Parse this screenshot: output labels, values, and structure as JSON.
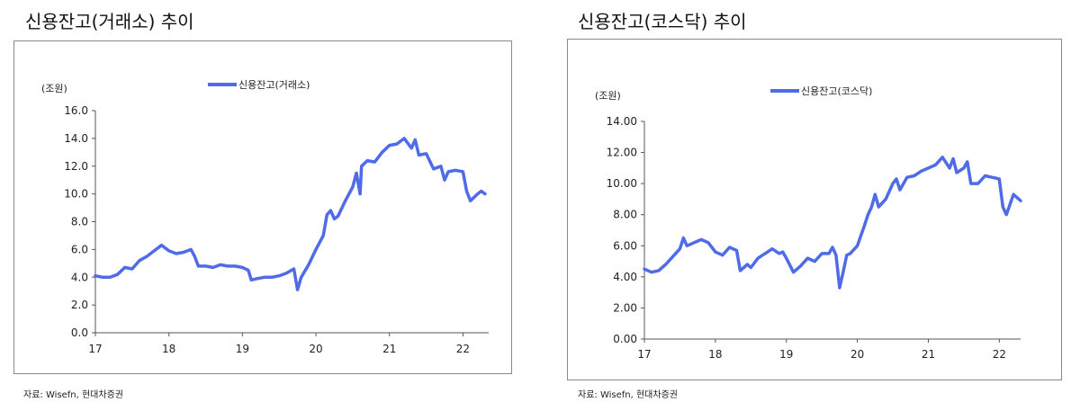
{
  "charts": [
    {
      "title": "신용잔고(거래소) 추이",
      "source": "자료: Wisefn, 현대차증권",
      "chart_data": {
        "type": "line",
        "unit_label": "(조원)",
        "series": [
          {
            "name": "신용잔고(거래소)",
            "color": "#4F6BE8",
            "points": [
              [
                17.0,
                4.1
              ],
              [
                17.1,
                4.0
              ],
              [
                17.2,
                4.0
              ],
              [
                17.3,
                4.2
              ],
              [
                17.4,
                4.7
              ],
              [
                17.5,
                4.6
              ],
              [
                17.6,
                5.2
              ],
              [
                17.7,
                5.5
              ],
              [
                17.8,
                5.9
              ],
              [
                17.9,
                6.3
              ],
              [
                18.0,
                5.9
              ],
              [
                18.1,
                5.7
              ],
              [
                18.2,
                5.8
              ],
              [
                18.3,
                6.0
              ],
              [
                18.35,
                5.5
              ],
              [
                18.4,
                4.8
              ],
              [
                18.5,
                4.8
              ],
              [
                18.6,
                4.7
              ],
              [
                18.7,
                4.9
              ],
              [
                18.8,
                4.8
              ],
              [
                18.9,
                4.8
              ],
              [
                19.0,
                4.7
              ],
              [
                19.08,
                4.5
              ],
              [
                19.12,
                3.8
              ],
              [
                19.2,
                3.9
              ],
              [
                19.3,
                4.0
              ],
              [
                19.4,
                4.0
              ],
              [
                19.5,
                4.1
              ],
              [
                19.6,
                4.3
              ],
              [
                19.7,
                4.6
              ],
              [
                19.75,
                3.1
              ],
              [
                19.8,
                4.0
              ],
              [
                19.9,
                4.9
              ],
              [
                20.0,
                6.0
              ],
              [
                20.1,
                7.0
              ],
              [
                20.15,
                8.5
              ],
              [
                20.2,
                8.8
              ],
              [
                20.25,
                8.2
              ],
              [
                20.3,
                8.4
              ],
              [
                20.4,
                9.5
              ],
              [
                20.5,
                10.5
              ],
              [
                20.55,
                11.5
              ],
              [
                20.6,
                10.0
              ],
              [
                20.62,
                12.0
              ],
              [
                20.7,
                12.4
              ],
              [
                20.8,
                12.3
              ],
              [
                20.9,
                13.0
              ],
              [
                21.0,
                13.5
              ],
              [
                21.1,
                13.6
              ],
              [
                21.2,
                14.0
              ],
              [
                21.3,
                13.3
              ],
              [
                21.35,
                13.9
              ],
              [
                21.4,
                12.8
              ],
              [
                21.5,
                12.9
              ],
              [
                21.6,
                11.8
              ],
              [
                21.7,
                12.0
              ],
              [
                21.75,
                11.0
              ],
              [
                21.8,
                11.6
              ],
              [
                21.9,
                11.7
              ],
              [
                22.0,
                11.6
              ],
              [
                22.05,
                10.2
              ],
              [
                22.1,
                9.5
              ],
              [
                22.2,
                10.0
              ],
              [
                22.25,
                10.2
              ],
              [
                22.3,
                10.0
              ]
            ]
          }
        ],
        "xticks": [
          17,
          18,
          19,
          20,
          21,
          22
        ],
        "xtick_labels": [
          "17",
          "18",
          "19",
          "20",
          "21",
          "22"
        ],
        "xlim": [
          17,
          22.35
        ],
        "yticks": [
          0,
          2,
          4,
          6,
          8,
          10,
          12,
          14,
          16
        ],
        "ytick_labels": [
          "0.0",
          "2.0",
          "4.0",
          "6.0",
          "8.0",
          "10.0",
          "12.0",
          "14.0",
          "16.0"
        ],
        "ylim": [
          0,
          16
        ],
        "grid": false,
        "legend_position": "top-center"
      }
    },
    {
      "title": "신용잔고(코스닥) 추이",
      "source": "자료: Wisefn, 현대차증권",
      "chart_data": {
        "type": "line",
        "unit_label": "(조원)",
        "series": [
          {
            "name": "신용잔고(코스닥)",
            "color": "#4F6BE8",
            "points": [
              [
                17.0,
                4.5
              ],
              [
                17.1,
                4.3
              ],
              [
                17.2,
                4.4
              ],
              [
                17.3,
                4.8
              ],
              [
                17.4,
                5.3
              ],
              [
                17.5,
                5.8
              ],
              [
                17.55,
                6.5
              ],
              [
                17.6,
                6.0
              ],
              [
                17.7,
                6.2
              ],
              [
                17.8,
                6.4
              ],
              [
                17.9,
                6.2
              ],
              [
                18.0,
                5.6
              ],
              [
                18.1,
                5.4
              ],
              [
                18.2,
                5.9
              ],
              [
                18.3,
                5.7
              ],
              [
                18.35,
                4.4
              ],
              [
                18.45,
                4.8
              ],
              [
                18.5,
                4.6
              ],
              [
                18.6,
                5.2
              ],
              [
                18.7,
                5.5
              ],
              [
                18.8,
                5.8
              ],
              [
                18.9,
                5.5
              ],
              [
                18.95,
                5.6
              ],
              [
                19.0,
                5.2
              ],
              [
                19.1,
                4.3
              ],
              [
                19.2,
                4.7
              ],
              [
                19.3,
                5.2
              ],
              [
                19.4,
                5.0
              ],
              [
                19.5,
                5.5
              ],
              [
                19.6,
                5.5
              ],
              [
                19.65,
                5.9
              ],
              [
                19.7,
                5.4
              ],
              [
                19.75,
                3.3
              ],
              [
                19.8,
                4.3
              ],
              [
                19.85,
                5.4
              ],
              [
                19.9,
                5.5
              ],
              [
                20.0,
                6.0
              ],
              [
                20.1,
                7.3
              ],
              [
                20.15,
                8.0
              ],
              [
                20.2,
                8.5
              ],
              [
                20.25,
                9.3
              ],
              [
                20.3,
                8.5
              ],
              [
                20.4,
                9.0
              ],
              [
                20.5,
                10.0
              ],
              [
                20.55,
                10.3
              ],
              [
                20.6,
                9.6
              ],
              [
                20.7,
                10.4
              ],
              [
                20.8,
                10.5
              ],
              [
                20.9,
                10.8
              ],
              [
                21.0,
                11.0
              ],
              [
                21.1,
                11.2
              ],
              [
                21.2,
                11.7
              ],
              [
                21.3,
                11.0
              ],
              [
                21.35,
                11.6
              ],
              [
                21.4,
                10.7
              ],
              [
                21.5,
                11.0
              ],
              [
                21.55,
                11.4
              ],
              [
                21.6,
                10.0
              ],
              [
                21.7,
                10.0
              ],
              [
                21.8,
                10.5
              ],
              [
                21.9,
                10.4
              ],
              [
                22.0,
                10.3
              ],
              [
                22.05,
                8.5
              ],
              [
                22.1,
                8.0
              ],
              [
                22.2,
                9.3
              ],
              [
                22.3,
                8.9
              ]
            ]
          }
        ],
        "xticks": [
          17,
          18,
          19,
          20,
          21,
          22
        ],
        "xtick_labels": [
          "17",
          "18",
          "19",
          "20",
          "21",
          "22"
        ],
        "xlim": [
          17,
          22.3
        ],
        "yticks": [
          0,
          2,
          4,
          6,
          8,
          10,
          12,
          14
        ],
        "ytick_labels": [
          "0.00",
          "2.00",
          "4.00",
          "6.00",
          "8.00",
          "10.00",
          "12.00",
          "14.00"
        ],
        "ylim": [
          0,
          14
        ],
        "grid": false,
        "legend_position": "top-center"
      }
    }
  ]
}
